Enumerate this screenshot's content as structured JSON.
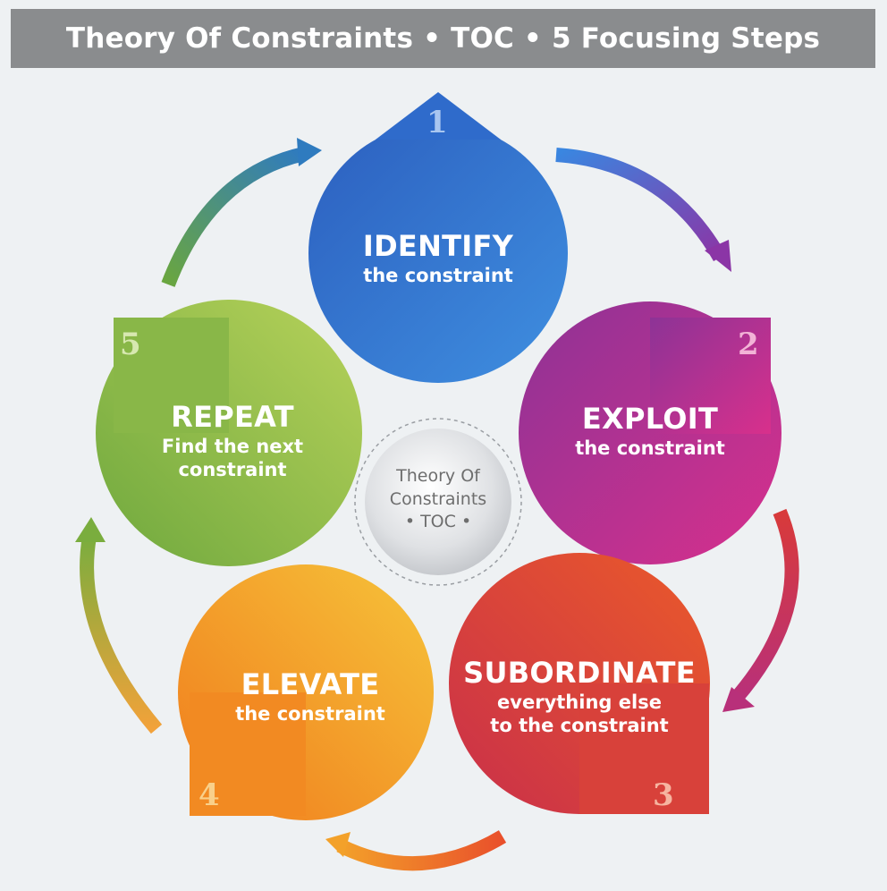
{
  "header": {
    "title": "Theory Of Constraints • TOC • 5 Focusing Steps"
  },
  "center": {
    "line1": "Theory Of",
    "line2": "Constraints",
    "line3": "• TOC •"
  },
  "steps": [
    {
      "number": "1",
      "heading": "IDENTIFY",
      "sub1": "the constraint",
      "sub2": "",
      "color_start": "#2c5fbf",
      "color_end": "#3f8fe0"
    },
    {
      "number": "2",
      "heading": "EXPLOIT",
      "sub1": "the constraint",
      "sub2": "",
      "color_start": "#8d3396",
      "color_end": "#d8308c"
    },
    {
      "number": "3",
      "heading": "SUBORDINATE",
      "sub1": "everything else",
      "sub2": "to the constraint",
      "color_start": "#c92f4a",
      "color_end": "#ea5a2a"
    },
    {
      "number": "4",
      "heading": "ELEVATE",
      "sub1": "the constraint",
      "sub2": "",
      "color_start": "#f07a1c",
      "color_end": "#f6c43a"
    },
    {
      "number": "5",
      "heading": "REPEAT",
      "sub1": "Find the next",
      "sub2": "constraint",
      "color_start": "#6fa83e",
      "color_end": "#b7d25a"
    }
  ]
}
